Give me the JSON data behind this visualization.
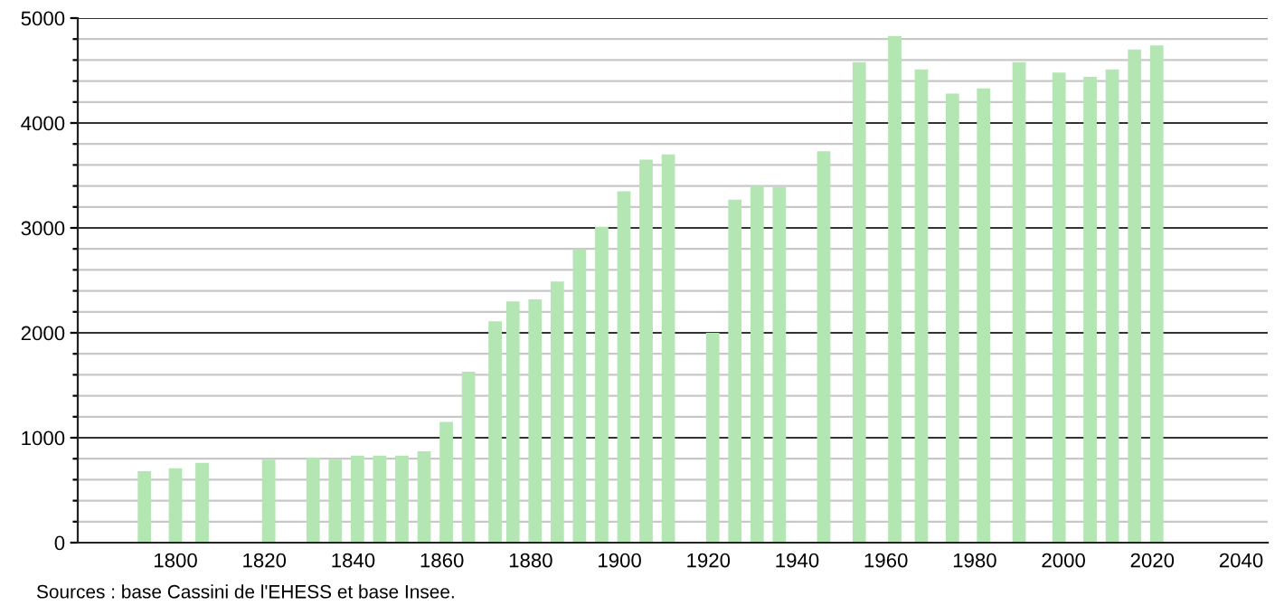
{
  "chart_data": {
    "type": "bar",
    "x": [
      1793,
      1800,
      1806,
      1821,
      1831,
      1836,
      1841,
      1846,
      1851,
      1856,
      1861,
      1866,
      1872,
      1876,
      1881,
      1886,
      1891,
      1896,
      1901,
      1906,
      1911,
      1921,
      1926,
      1931,
      1936,
      1946,
      1954,
      1962,
      1968,
      1975,
      1982,
      1990,
      1999,
      2006,
      2011,
      2016,
      2021
    ],
    "values": [
      680,
      710,
      760,
      790,
      810,
      790,
      830,
      830,
      830,
      870,
      1150,
      1630,
      2110,
      2300,
      2320,
      2490,
      2800,
      3010,
      3350,
      3650,
      3700,
      2000,
      3270,
      3400,
      3390,
      3730,
      4580,
      4830,
      4510,
      4280,
      4330,
      4580,
      4480,
      4440,
      4510,
      4700,
      4740
    ],
    "color": "#b3e6b3",
    "xlim": [
      1778,
      2046
    ],
    "xticks": [
      1800,
      1820,
      1840,
      1860,
      1880,
      1900,
      1920,
      1940,
      1960,
      1980,
      2000,
      2020,
      2040
    ],
    "ylim": [
      0,
      5000
    ],
    "yticks": [
      0,
      {
        "value": 200,
        "label": null
      },
      {
        "value": 400,
        "label": null
      },
      {
        "value": 600,
        "label": null
      },
      {
        "value": 800,
        "label": null
      },
      1000,
      {
        "value": 1200,
        "label": null
      },
      {
        "value": 1400,
        "label": null
      },
      {
        "value": 1600,
        "label": null
      },
      {
        "value": 1800,
        "label": null
      },
      2000,
      {
        "value": 2200,
        "label": null
      },
      {
        "value": 2400,
        "label": null
      },
      {
        "value": 2600,
        "label": null
      },
      {
        "value": 2800,
        "label": null
      },
      3000,
      {
        "value": 3200,
        "label": null
      },
      {
        "value": 3400,
        "label": null
      },
      {
        "value": 3600,
        "label": null
      },
      {
        "value": 3800,
        "label": null
      },
      4000,
      {
        "value": 4200,
        "label": null
      },
      {
        "value": 4400,
        "label": null
      },
      {
        "value": 4600,
        "label": null
      },
      {
        "value": 4800,
        "label": null
      },
      5000
    ],
    "grid": "y",
    "annotations": [
      "Sources : base Cassini de l'EHESS et base Insee."
    ]
  }
}
